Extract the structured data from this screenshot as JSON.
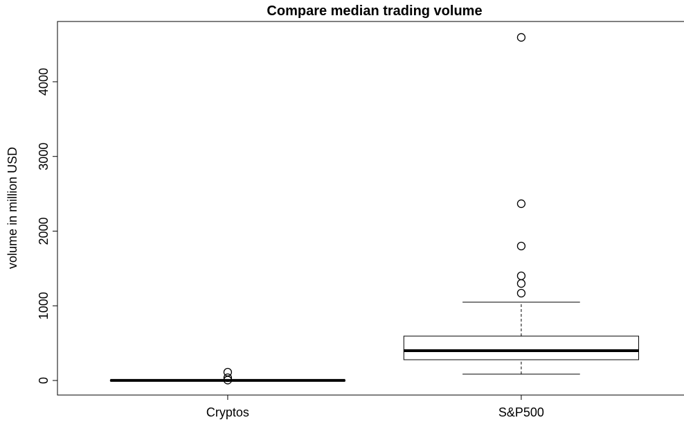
{
  "chart_data": {
    "type": "boxplot",
    "title": "Compare median trading volume",
    "y_label": "volume in million USD",
    "categories": [
      "Cryptos",
      "S&P500"
    ],
    "boxes": [
      {
        "whisker_low": 0,
        "q1": 0,
        "median": 1,
        "q3": 2,
        "whisker_high": 5,
        "outliers": [
          111,
          37,
          5
        ]
      },
      {
        "whisker_low": 84,
        "q1": 278,
        "median": 399,
        "q3": 594,
        "whisker_high": 1049,
        "outliers": [
          4594,
          2367,
          1800,
          1401,
          1299,
          1169
        ]
      }
    ],
    "ylim": [
      -195,
      4807
    ],
    "yticks": [
      0,
      1000,
      2000,
      3000,
      4000
    ],
    "color": "#000000"
  }
}
